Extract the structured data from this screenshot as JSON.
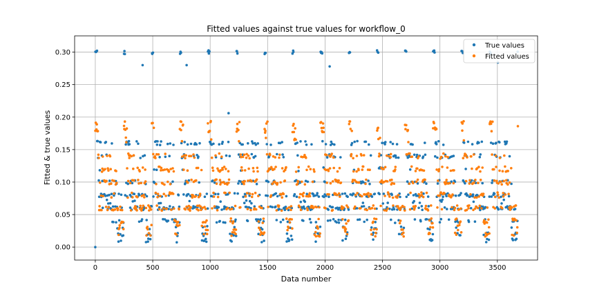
{
  "chart_data": {
    "type": "scatter",
    "title": "Fitted values against true values for workflow_0",
    "xlabel": "Data number",
    "ylabel": "Fitted & true values",
    "xlim": [
      -180,
      3850
    ],
    "ylim": [
      -0.02,
      0.325
    ],
    "xticks": [
      0,
      500,
      1000,
      1500,
      2000,
      2500,
      3000,
      3500
    ],
    "yticks": [
      0.0,
      0.05,
      0.1,
      0.15,
      0.2,
      0.25,
      0.3
    ],
    "grid": true,
    "legend_position": "top-right",
    "cycle_length": 245,
    "n_points": 3680,
    "series": [
      {
        "name": "True values",
        "color": "#1f77b4",
        "levels": [
          0.3,
          0.16,
          0.14,
          0.12,
          0.1,
          0.08,
          0.07,
          0.06,
          0.04,
          0.02
        ],
        "outliers": [
          {
            "x": 0,
            "y": 0.0
          },
          {
            "x": 412,
            "y": 0.28
          },
          {
            "x": 795,
            "y": 0.28
          },
          {
            "x": 1160,
            "y": 0.206
          },
          {
            "x": 2040,
            "y": 0.278
          },
          {
            "x": 3505,
            "y": 0.284
          }
        ]
      },
      {
        "name": "Fitted values",
        "color": "#ff7f0e",
        "levels": [
          0.19,
          0.18,
          0.165,
          0.14,
          0.12,
          0.1,
          0.08,
          0.06,
          0.04,
          0.03
        ]
      }
    ]
  }
}
